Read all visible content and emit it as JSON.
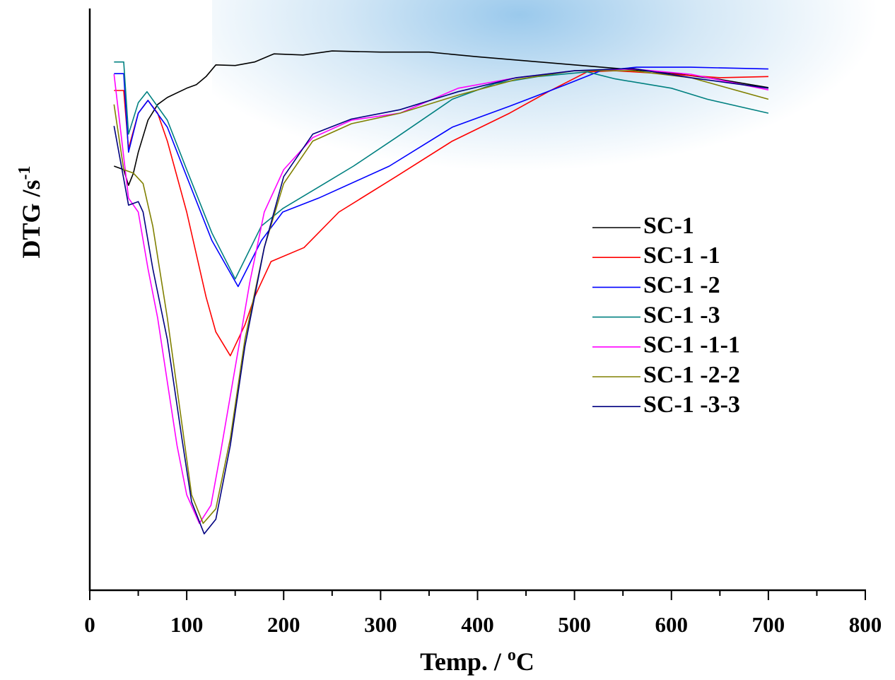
{
  "chart_data": {
    "type": "line",
    "xlabel": [
      "Temp. / ",
      "o",
      "C"
    ],
    "ylabel": [
      "DTG  /s",
      "-1"
    ],
    "xlim": [
      0,
      800
    ],
    "xticks": [
      0,
      100,
      200,
      300,
      400,
      500,
      600,
      700,
      800
    ],
    "xminorticks": [
      50,
      150,
      250,
      350,
      450,
      550,
      650,
      750
    ],
    "ylim": [
      0,
      100
    ],
    "legend": "right",
    "series": [
      {
        "name": "SC-1",
        "color": "#000000",
        "x": [
          25,
          35,
          40,
          45,
          50,
          60,
          70,
          80,
          100,
          110,
          120,
          130,
          150,
          170,
          190,
          220,
          250,
          300,
          350,
          400,
          450,
          500,
          550,
          600,
          650,
          700
        ],
        "values": [
          72.9,
          72.3,
          69.6,
          71.7,
          75.3,
          80.8,
          83.5,
          84.7,
          86.3,
          86.9,
          88.3,
          90.3,
          90.2,
          90.8,
          92.2,
          92.0,
          92.7,
          92.5,
          92.5,
          91.7,
          91.0,
          90.3,
          89.6,
          88.9,
          87.8,
          86.4
        ]
      },
      {
        "name": "SC-1 -1",
        "color": "#ff0000",
        "x": [
          25,
          35,
          40,
          50,
          60,
          70,
          80,
          100,
          120,
          130,
          145,
          160,
          170,
          187,
          221,
          257,
          316,
          374,
          433,
          473,
          513,
          542,
          600,
          650,
          700
        ],
        "values": [
          85.9,
          85.9,
          75.9,
          82.0,
          84.2,
          82.0,
          77.2,
          65.0,
          50.4,
          44.4,
          40.3,
          45.6,
          50.4,
          56.5,
          58.9,
          65.0,
          71.1,
          77.2,
          82.0,
          85.7,
          89.1,
          89.3,
          88.7,
          88.1,
          88.3
        ]
      },
      {
        "name": "SC-1 -2",
        "color": "#0000ff",
        "x": [
          25,
          35,
          40,
          50,
          60,
          80,
          100,
          126,
          153,
          177,
          199,
          236,
          309,
          374,
          433,
          491,
          527,
          564,
          620,
          700
        ],
        "values": [
          88.8,
          88.8,
          75.3,
          82.0,
          84.2,
          79.6,
          71.1,
          60.1,
          52.2,
          60.1,
          65.0,
          67.4,
          72.9,
          79.6,
          83.2,
          86.9,
          89.3,
          89.9,
          89.9,
          89.6
        ]
      },
      {
        "name": "SC-1 -3",
        "color": "#008080",
        "x": [
          25,
          35,
          40,
          50,
          59,
          80,
          100,
          126,
          150,
          177,
          199,
          236,
          272,
          316,
          374,
          418,
          462,
          513,
          542,
          600,
          637,
          700
        ],
        "values": [
          90.8,
          90.8,
          78.4,
          83.8,
          85.7,
          80.8,
          72.3,
          61.4,
          53.5,
          62.6,
          65.6,
          69.3,
          72.9,
          77.8,
          84.4,
          87.1,
          88.3,
          89.1,
          87.9,
          86.3,
          84.4,
          82.0
        ]
      },
      {
        "name": "SC-1 -1-1",
        "color": "#ff00ff",
        "x": [
          25,
          40,
          50,
          60,
          70,
          80,
          90,
          100,
          113,
          125,
          135,
          150,
          165,
          180,
          200,
          230,
          270,
          320,
          380,
          440,
          500,
          560,
          620,
          700
        ],
        "values": [
          88.7,
          67.4,
          65.0,
          55.3,
          46.8,
          35.8,
          24.9,
          16.4,
          11.5,
          14.6,
          23.7,
          38.3,
          52.9,
          65.0,
          72.3,
          77.8,
          80.8,
          82.0,
          86.3,
          88.1,
          89.3,
          89.6,
          88.7,
          86.0
        ]
      },
      {
        "name": "SC-1 -2-2",
        "color": "#808000",
        "x": [
          25,
          35,
          45,
          55,
          65,
          80,
          95,
          105,
          117,
          130,
          145,
          160,
          180,
          200,
          230,
          270,
          320,
          380,
          440,
          500,
          560,
          620,
          700
        ],
        "values": [
          83.5,
          72.3,
          71.7,
          69.9,
          62.6,
          46.8,
          28.6,
          16.4,
          11.5,
          14.0,
          26.1,
          43.1,
          58.9,
          69.9,
          77.2,
          80.2,
          82.0,
          85.1,
          87.8,
          89.3,
          89.3,
          88.1,
          84.4
        ]
      },
      {
        "name": "SC-1 -3-3",
        "color": "#000080",
        "x": [
          25,
          40,
          50,
          55,
          65,
          80,
          95,
          105,
          118,
          130,
          145,
          160,
          180,
          200,
          230,
          270,
          320,
          380,
          440,
          500,
          560,
          620,
          700
        ],
        "values": [
          79.8,
          66.2,
          66.8,
          65.0,
          55.3,
          43.1,
          26.1,
          15.2,
          9.7,
          12.2,
          24.9,
          41.9,
          58.9,
          71.1,
          78.4,
          81.0,
          82.6,
          85.7,
          88.1,
          89.3,
          89.7,
          88.1,
          86.3
        ]
      }
    ]
  }
}
